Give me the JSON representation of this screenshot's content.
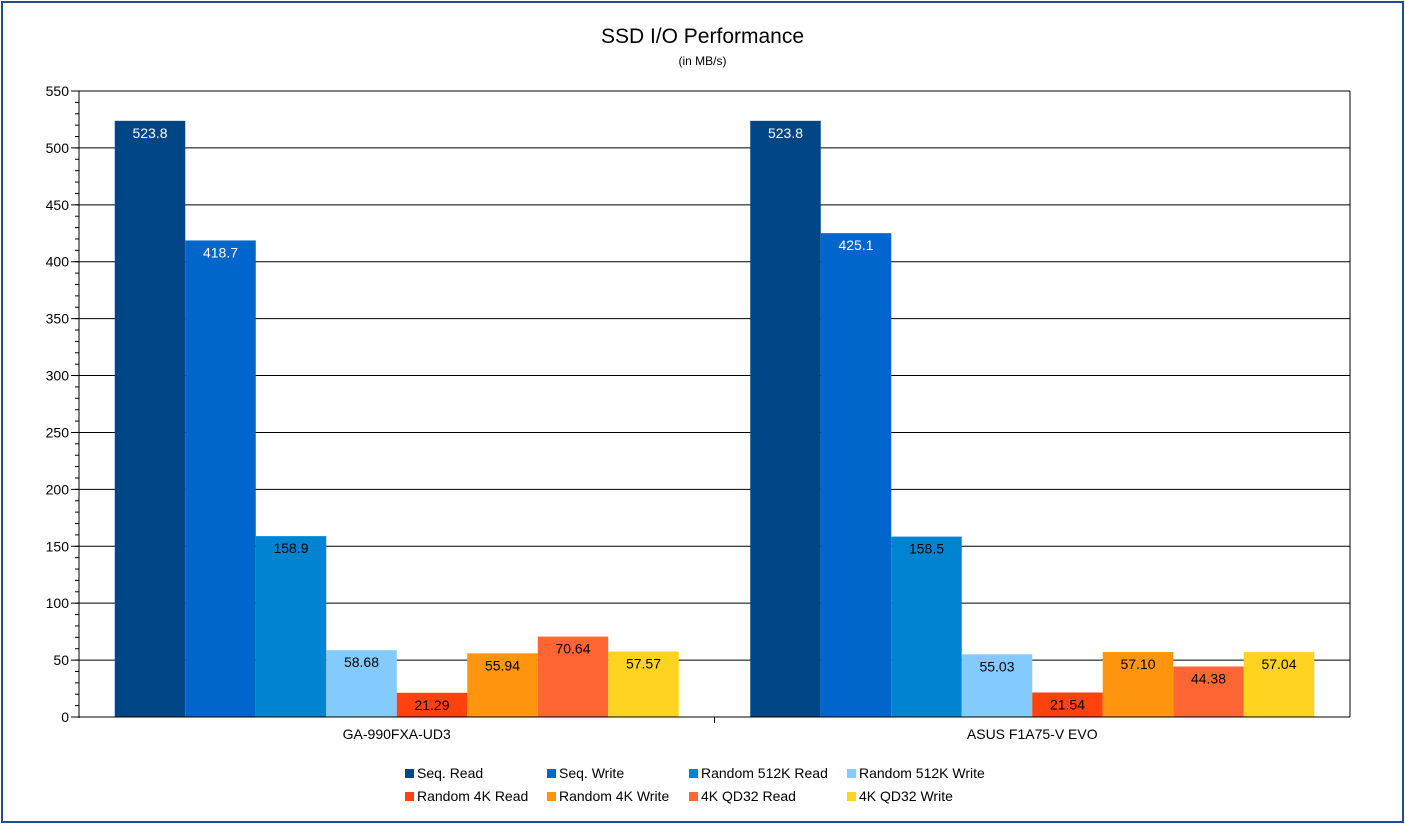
{
  "chart_data": {
    "type": "bar",
    "title": "SSD I/O Performance",
    "subtitle": "(in MB/s)",
    "xlabel": "",
    "ylabel": "",
    "ylim": [
      0,
      550
    ],
    "y_major_step": 50,
    "y_minor_step": 10,
    "yticks": [
      "0",
      "50",
      "100",
      "150",
      "200",
      "250",
      "300",
      "350",
      "400",
      "450",
      "500",
      "550"
    ],
    "grid": true,
    "legend_position": "bottom",
    "categories": [
      "GA-990FXA-UD3",
      "ASUS F1A75-V EVO"
    ],
    "series": [
      {
        "name": "Seq. Read",
        "color": "#004586",
        "label_color": "#ffffff",
        "values": [
          523.8,
          523.8
        ],
        "labels": [
          "523.8",
          "523.8"
        ]
      },
      {
        "name": "Seq. Write",
        "color": "#0066cc",
        "label_color": "#ffffff",
        "values": [
          418.7,
          425.1
        ],
        "labels": [
          "418.7",
          "425.1"
        ]
      },
      {
        "name": "Random 512K Read",
        "color": "#0084d1",
        "label_color": "#000000",
        "values": [
          158.9,
          158.5
        ],
        "labels": [
          "158.9",
          "158.5"
        ]
      },
      {
        "name": "Random 512K Write",
        "color": "#83caff",
        "label_color": "#000000",
        "values": [
          58.68,
          55.03
        ],
        "labels": [
          "58.68",
          "55.03"
        ]
      },
      {
        "name": "Random 4K Read",
        "color": "#ff420e",
        "label_color": "#000000",
        "values": [
          21.29,
          21.54
        ],
        "labels": [
          "21.29",
          "21.54"
        ]
      },
      {
        "name": "Random 4K Write",
        "color": "#ff950e",
        "label_color": "#000000",
        "values": [
          55.94,
          57.1
        ],
        "labels": [
          "55.94",
          "57.10"
        ]
      },
      {
        "name": "4K QD32 Read",
        "color": "#ff6633",
        "label_color": "#000000",
        "values": [
          70.64,
          44.38
        ],
        "labels": [
          "70.64",
          "44.38"
        ]
      },
      {
        "name": "4K QD32 Write",
        "color": "#ffd320",
        "label_color": "#000000",
        "values": [
          57.57,
          57.04
        ],
        "labels": [
          "57.57",
          "57.04"
        ]
      }
    ]
  }
}
